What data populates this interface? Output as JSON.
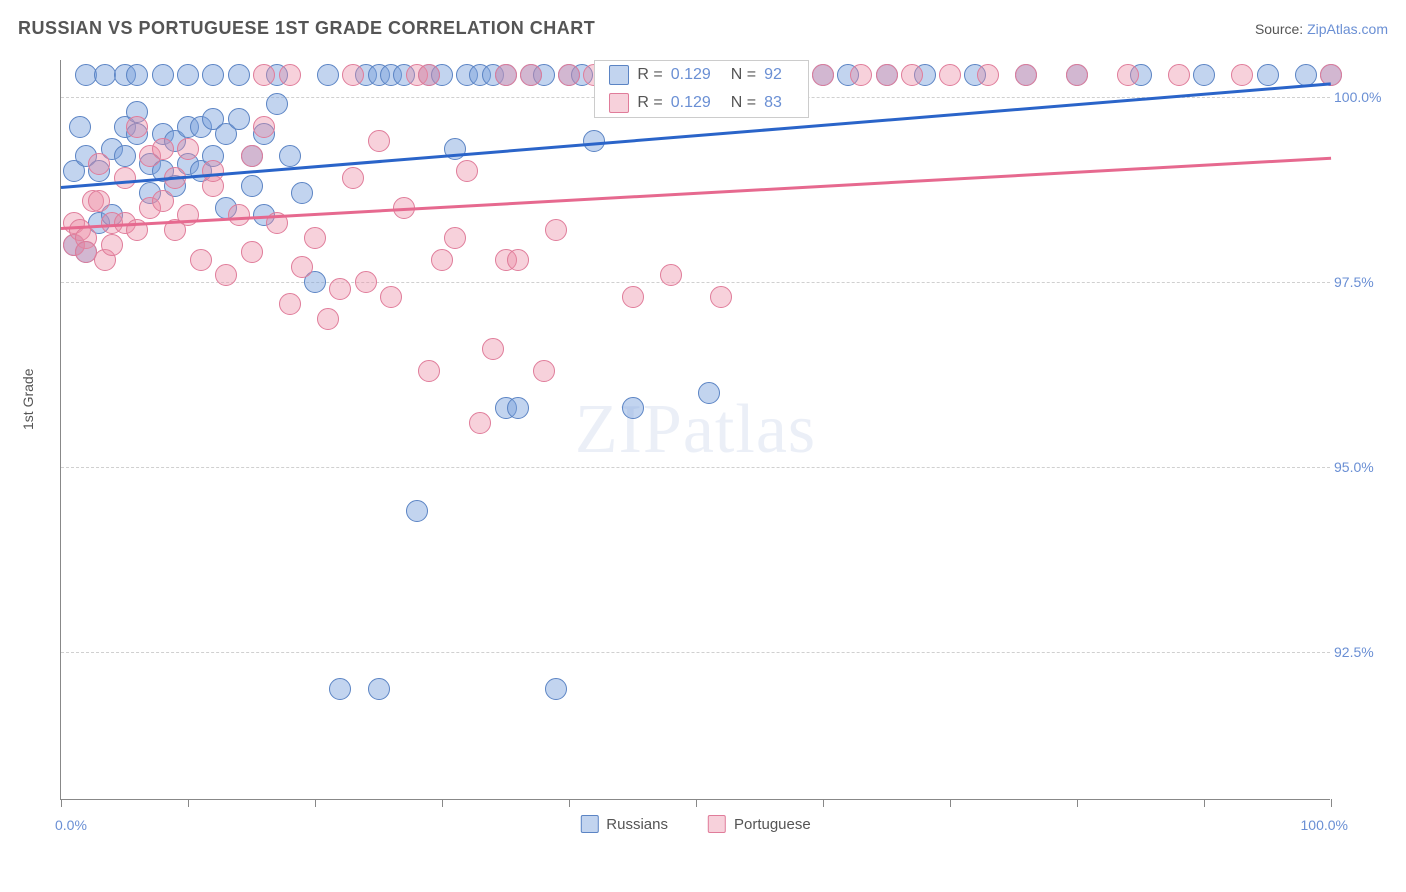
{
  "title": "RUSSIAN VS PORTUGUESE 1ST GRADE CORRELATION CHART",
  "source_label": "Source: ",
  "source_link": "ZipAtlas.com",
  "y_axis_title": "1st Grade",
  "watermark": {
    "zip": "ZIP",
    "atlas": "atlas"
  },
  "chart": {
    "type": "scatter",
    "xlim": [
      0,
      100
    ],
    "ylim": [
      90.5,
      100.5
    ],
    "y_ticks": [
      92.5,
      95.0,
      97.5,
      100.0
    ],
    "y_tick_labels": [
      "92.5%",
      "95.0%",
      "97.5%",
      "100.0%"
    ],
    "x_ticks": [
      0,
      10,
      20,
      30,
      40,
      50,
      60,
      70,
      80,
      90,
      100
    ],
    "x_tick_labels": {
      "0": "0.0%",
      "100": "100.0%"
    },
    "grid_color": "#d0d0d0",
    "axis_color": "#888888",
    "background_color": "#ffffff",
    "point_radius": 11,
    "point_opacity": 0.55,
    "series": [
      {
        "name": "Russians",
        "color_fill": "rgba(120,160,220,0.45)",
        "color_stroke": "#5b84c4",
        "trend_color": "#2a64c9",
        "trend": {
          "x0": 0,
          "y0": 98.8,
          "x1": 100,
          "y1": 100.2
        },
        "R": "0.129",
        "N": "92",
        "points": [
          [
            1,
            98.0
          ],
          [
            1,
            99.0
          ],
          [
            1.5,
            99.6
          ],
          [
            2,
            97.9
          ],
          [
            2,
            99.2
          ],
          [
            2,
            100.3
          ],
          [
            3,
            99.0
          ],
          [
            3,
            98.3
          ],
          [
            3.5,
            100.3
          ],
          [
            4,
            99.3
          ],
          [
            4,
            98.4
          ],
          [
            5,
            99.6
          ],
          [
            5,
            100.3
          ],
          [
            5,
            99.2
          ],
          [
            6,
            99.5
          ],
          [
            6,
            99.8
          ],
          [
            6,
            100.3
          ],
          [
            7,
            99.1
          ],
          [
            7,
            98.7
          ],
          [
            8,
            99.5
          ],
          [
            8,
            99.0
          ],
          [
            8,
            100.3
          ],
          [
            9,
            99.4
          ],
          [
            9,
            98.8
          ],
          [
            10,
            99.6
          ],
          [
            10,
            99.1
          ],
          [
            10,
            100.3
          ],
          [
            11,
            99.0
          ],
          [
            11,
            99.6
          ],
          [
            12,
            99.7
          ],
          [
            12,
            99.2
          ],
          [
            12,
            100.3
          ],
          [
            13,
            99.5
          ],
          [
            13,
            98.5
          ],
          [
            14,
            99.7
          ],
          [
            14,
            100.3
          ],
          [
            15,
            98.8
          ],
          [
            15,
            99.2
          ],
          [
            16,
            99.5
          ],
          [
            16,
            98.4
          ],
          [
            17,
            99.9
          ],
          [
            17,
            100.3
          ],
          [
            18,
            99.2
          ],
          [
            19,
            98.7
          ],
          [
            20,
            97.5
          ],
          [
            21,
            100.3
          ],
          [
            22,
            92.0
          ],
          [
            24,
            100.3
          ],
          [
            25,
            100.3
          ],
          [
            25,
            92.0
          ],
          [
            26,
            100.3
          ],
          [
            27,
            100.3
          ],
          [
            28,
            94.4
          ],
          [
            29,
            100.3
          ],
          [
            30,
            100.3
          ],
          [
            31,
            99.3
          ],
          [
            32,
            100.3
          ],
          [
            33,
            100.3
          ],
          [
            34,
            100.3
          ],
          [
            35,
            95.8
          ],
          [
            35,
            100.3
          ],
          [
            36,
            95.8
          ],
          [
            37,
            100.3
          ],
          [
            38,
            100.3
          ],
          [
            39,
            92.0
          ],
          [
            40,
            100.3
          ],
          [
            41,
            100.3
          ],
          [
            42,
            99.4
          ],
          [
            43,
            100.3
          ],
          [
            44,
            100.3
          ],
          [
            45,
            95.8
          ],
          [
            46,
            100.3
          ],
          [
            47,
            100.3
          ],
          [
            49,
            100.3
          ],
          [
            50,
            100.3
          ],
          [
            51,
            96.0
          ],
          [
            52,
            100.3
          ],
          [
            54,
            100.3
          ],
          [
            56,
            100.3
          ],
          [
            58,
            100.3
          ],
          [
            60,
            100.3
          ],
          [
            62,
            100.3
          ],
          [
            65,
            100.3
          ],
          [
            68,
            100.3
          ],
          [
            72,
            100.3
          ],
          [
            76,
            100.3
          ],
          [
            80,
            100.3
          ],
          [
            85,
            100.3
          ],
          [
            90,
            100.3
          ],
          [
            95,
            100.3
          ],
          [
            98,
            100.3
          ],
          [
            100,
            100.3
          ]
        ]
      },
      {
        "name": "Portuguese",
        "color_fill": "rgba(235,140,165,0.40)",
        "color_stroke": "#e07c9a",
        "trend_color": "#e6698f",
        "trend": {
          "x0": 0,
          "y0": 98.25,
          "x1": 100,
          "y1": 99.2
        },
        "R": "0.129",
        "N": "83",
        "points": [
          [
            1,
            98.0
          ],
          [
            1,
            98.3
          ],
          [
            1.5,
            98.2
          ],
          [
            2,
            98.1
          ],
          [
            2,
            97.9
          ],
          [
            2.5,
            98.6
          ],
          [
            3,
            98.6
          ],
          [
            3,
            99.1
          ],
          [
            3.5,
            97.8
          ],
          [
            4,
            98.3
          ],
          [
            4,
            98.0
          ],
          [
            5,
            98.9
          ],
          [
            5,
            98.3
          ],
          [
            6,
            98.2
          ],
          [
            6,
            99.6
          ],
          [
            7,
            98.5
          ],
          [
            7,
            99.2
          ],
          [
            8,
            98.6
          ],
          [
            8,
            99.3
          ],
          [
            9,
            98.2
          ],
          [
            9,
            98.9
          ],
          [
            10,
            98.4
          ],
          [
            10,
            99.3
          ],
          [
            11,
            97.8
          ],
          [
            12,
            98.8
          ],
          [
            12,
            99.0
          ],
          [
            13,
            97.6
          ],
          [
            14,
            98.4
          ],
          [
            15,
            97.9
          ],
          [
            15,
            99.2
          ],
          [
            16,
            99.6
          ],
          [
            16,
            100.3
          ],
          [
            17,
            98.3
          ],
          [
            18,
            97.2
          ],
          [
            18,
            100.3
          ],
          [
            19,
            97.7
          ],
          [
            20,
            98.1
          ],
          [
            21,
            97.0
          ],
          [
            22,
            97.4
          ],
          [
            23,
            98.9
          ],
          [
            23,
            100.3
          ],
          [
            24,
            97.5
          ],
          [
            25,
            99.4
          ],
          [
            26,
            97.3
          ],
          [
            27,
            98.5
          ],
          [
            28,
            100.3
          ],
          [
            29,
            96.3
          ],
          [
            29,
            100.3
          ],
          [
            30,
            97.8
          ],
          [
            31,
            98.1
          ],
          [
            32,
            99.0
          ],
          [
            33,
            95.6
          ],
          [
            34,
            96.6
          ],
          [
            35,
            97.8
          ],
          [
            35,
            100.3
          ],
          [
            36,
            97.8
          ],
          [
            37,
            100.3
          ],
          [
            38,
            96.3
          ],
          [
            39,
            98.2
          ],
          [
            40,
            100.3
          ],
          [
            42,
            100.3
          ],
          [
            44,
            100.3
          ],
          [
            45,
            97.3
          ],
          [
            46,
            100.3
          ],
          [
            48,
            97.6
          ],
          [
            49,
            100.3
          ],
          [
            50,
            100.3
          ],
          [
            52,
            97.3
          ],
          [
            54,
            100.3
          ],
          [
            56,
            100.3
          ],
          [
            58,
            100.3
          ],
          [
            60,
            100.3
          ],
          [
            63,
            100.3
          ],
          [
            65,
            100.3
          ],
          [
            67,
            100.3
          ],
          [
            70,
            100.3
          ],
          [
            73,
            100.3
          ],
          [
            76,
            100.3
          ],
          [
            80,
            100.3
          ],
          [
            84,
            100.3
          ],
          [
            88,
            100.3
          ],
          [
            93,
            100.3
          ],
          [
            100,
            100.3
          ]
        ]
      }
    ]
  },
  "legend_top": {
    "r_label": "R =",
    "n_label": "N ="
  },
  "legend_bottom": [
    {
      "label": "Russians"
    },
    {
      "label": "Portuguese"
    }
  ]
}
